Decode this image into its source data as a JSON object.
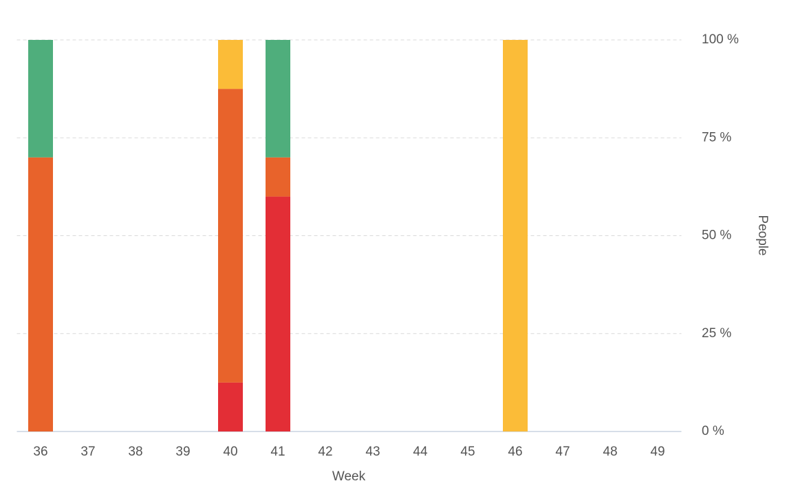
{
  "chart_data": {
    "type": "stacked-bar",
    "x_label": "Week",
    "y_label": "People",
    "categories": [
      "36",
      "37",
      "38",
      "39",
      "40",
      "41",
      "42",
      "43",
      "44",
      "45",
      "46",
      "47",
      "48",
      "49"
    ],
    "series": [
      {
        "color": "#e32e36",
        "values": [
          null,
          null,
          null,
          null,
          12.5,
          60,
          null,
          null,
          null,
          null,
          null,
          null,
          null,
          null
        ]
      },
      {
        "color": "#e8632b",
        "values": [
          70,
          null,
          null,
          null,
          75,
          10,
          null,
          null,
          null,
          null,
          null,
          null,
          null,
          null
        ]
      },
      {
        "color": "#fbbc38",
        "values": [
          null,
          null,
          null,
          null,
          12.5,
          null,
          null,
          null,
          null,
          null,
          100,
          null,
          null,
          null
        ]
      },
      {
        "color": "#4fae7c",
        "values": [
          30,
          null,
          null,
          null,
          null,
          30,
          null,
          null,
          null,
          null,
          null,
          null,
          null,
          null
        ]
      }
    ],
    "ylim": [
      0,
      100
    ],
    "yticks": [
      {
        "value": 0,
        "label": "0 %"
      },
      {
        "value": 25,
        "label": "25 %"
      },
      {
        "value": 50,
        "label": "50 %"
      },
      {
        "value": 75,
        "label": "75 %"
      },
      {
        "value": 100,
        "label": "100 %"
      }
    ],
    "grid": true
  }
}
